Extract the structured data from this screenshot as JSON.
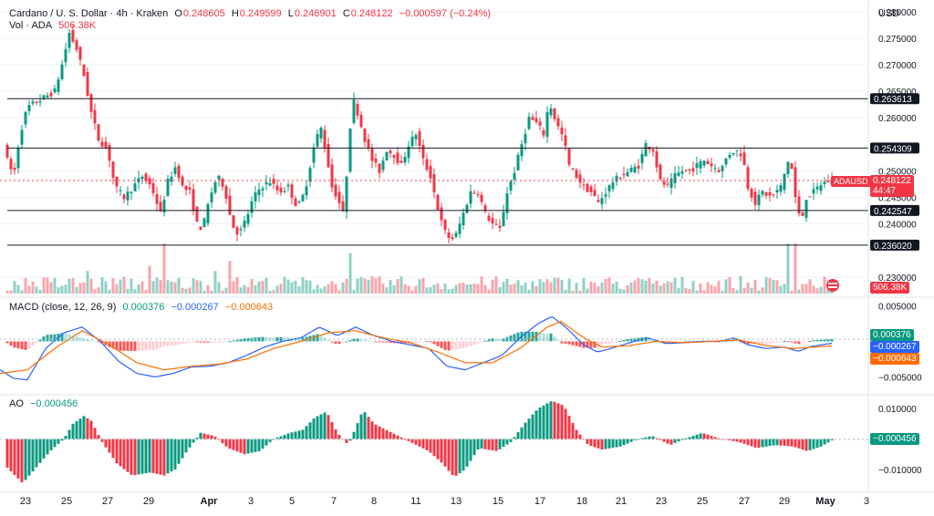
{
  "header": {
    "symbol": "Cardano / U. S. Dollar · 4h · Kraken",
    "open_label": "O",
    "open": "0.248605",
    "high_label": "H",
    "high": "0.249599",
    "low_label": "L",
    "low": "0.246901",
    "close_label": "C",
    "close": "0.248122",
    "change": "−0.000597 (−0.24%)",
    "vol_label": "Vol · ADA",
    "vol": "506.38K"
  },
  "currency": "USD",
  "macd_header": {
    "label": "MACD (close, 12, 26, 9)",
    "hist": "0.000376",
    "macd": "−0.000267",
    "signal": "−0.000643"
  },
  "ao_header": {
    "label": "AO",
    "value": "−0.000456"
  },
  "price_tag": {
    "symbol": "ADAUSD",
    "price": "0.248122",
    "countdown": "44:47"
  },
  "volume_tag": "506.38K",
  "colors": {
    "up": "#089981",
    "down": "#f23645",
    "macd": "#2962ff",
    "signal": "#ff6d00",
    "level": "#131722"
  },
  "chart_data": [
    {
      "type": "candlestick",
      "title": "Cardano / U. S. Dollar · 4h · Kraken",
      "x_ticks": [
        "23",
        "25",
        "27",
        "29",
        "Apr",
        "3",
        "5",
        "7",
        "8",
        "11",
        "13",
        "15",
        "17",
        "18",
        "21",
        "23",
        "25",
        "27",
        "29",
        "May",
        "3"
      ],
      "y_ticks": [
        "0.280000",
        "0.275000",
        "0.270000",
        "0.265000",
        "0.260000",
        "0.250000",
        "0.245000",
        "0.240000",
        "0.230000"
      ],
      "ylim": [
        0.2262,
        0.2822
      ],
      "levels": [
        "0.263613",
        "0.254309",
        "0.242547",
        "0.236020"
      ],
      "path": [
        [
          0,
          0.259
        ],
        [
          8,
          0.252
        ],
        [
          15,
          0.249
        ],
        [
          22,
          0.257
        ],
        [
          30,
          0.262
        ],
        [
          40,
          0.263
        ],
        [
          50,
          0.264
        ],
        [
          60,
          0.265
        ],
        [
          68,
          0.27
        ],
        [
          76,
          0.276
        ],
        [
          84,
          0.273
        ],
        [
          92,
          0.268
        ],
        [
          100,
          0.261
        ],
        [
          108,
          0.256
        ],
        [
          118,
          0.254
        ],
        [
          126,
          0.247
        ],
        [
          136,
          0.245
        ],
        [
          146,
          0.247
        ],
        [
          156,
          0.249
        ],
        [
          166,
          0.247
        ],
        [
          176,
          0.242
        ],
        [
          184,
          0.248
        ],
        [
          193,
          0.251
        ],
        [
          200,
          0.247
        ],
        [
          208,
          0.246
        ],
        [
          216,
          0.24
        ],
        [
          222,
          0.239
        ],
        [
          230,
          0.245
        ],
        [
          238,
          0.249
        ],
        [
          246,
          0.247
        ],
        [
          254,
          0.24
        ],
        [
          262,
          0.238
        ],
        [
          270,
          0.241
        ],
        [
          278,
          0.245
        ],
        [
          286,
          0.247
        ],
        [
          296,
          0.248
        ],
        [
          306,
          0.246
        ],
        [
          316,
          0.247
        ],
        [
          326,
          0.243
        ],
        [
          334,
          0.246
        ],
        [
          340,
          0.251
        ],
        [
          346,
          0.256
        ],
        [
          352,
          0.258
        ],
        [
          358,
          0.253
        ],
        [
          364,
          0.247
        ],
        [
          370,
          0.245
        ],
        [
          376,
          0.242
        ],
        [
          382,
          0.253
        ],
        [
          386,
          0.264
        ],
        [
          392,
          0.261
        ],
        [
          400,
          0.256
        ],
        [
          408,
          0.252
        ],
        [
          416,
          0.25
        ],
        [
          424,
          0.254
        ],
        [
          432,
          0.253
        ],
        [
          440,
          0.251
        ],
        [
          448,
          0.255
        ],
        [
          456,
          0.257
        ],
        [
          464,
          0.252
        ],
        [
          472,
          0.249
        ],
        [
          480,
          0.243
        ],
        [
          486,
          0.239
        ],
        [
          494,
          0.237
        ],
        [
          500,
          0.238
        ],
        [
          508,
          0.242
        ],
        [
          516,
          0.246
        ],
        [
          524,
          0.246
        ],
        [
          532,
          0.242
        ],
        [
          540,
          0.24
        ],
        [
          548,
          0.239
        ],
        [
          556,
          0.246
        ],
        [
          564,
          0.25
        ],
        [
          572,
          0.255
        ],
        [
          580,
          0.26
        ],
        [
          588,
          0.259
        ],
        [
          596,
          0.257
        ],
        [
          602,
          0.263
        ],
        [
          610,
          0.259
        ],
        [
          618,
          0.256
        ],
        [
          624,
          0.251
        ],
        [
          632,
          0.249
        ],
        [
          640,
          0.247
        ],
        [
          648,
          0.246
        ],
        [
          656,
          0.244
        ],
        [
          664,
          0.246
        ],
        [
          672,
          0.248
        ],
        [
          680,
          0.249
        ],
        [
          690,
          0.25
        ],
        [
          700,
          0.251
        ],
        [
          708,
          0.255
        ],
        [
          716,
          0.254
        ],
        [
          724,
          0.248
        ],
        [
          732,
          0.247
        ],
        [
          740,
          0.249
        ],
        [
          748,
          0.25
        ],
        [
          756,
          0.25
        ],
        [
          764,
          0.251
        ],
        [
          772,
          0.252
        ],
        [
          780,
          0.251
        ],
        [
          790,
          0.25
        ],
        [
          798,
          0.253
        ],
        [
          806,
          0.254
        ],
        [
          814,
          0.253
        ],
        [
          820,
          0.247
        ],
        [
          828,
          0.244
        ],
        [
          836,
          0.246
        ],
        [
          846,
          0.245
        ],
        [
          856,
          0.247
        ],
        [
          866,
          0.253
        ],
        [
          872,
          0.245
        ],
        [
          878,
          0.24
        ],
        [
          884,
          0.245
        ],
        [
          892,
          0.246
        ],
        [
          900,
          0.2475
        ],
        [
          906,
          0.248
        ],
        [
          912,
          0.2481
        ]
      ]
    },
    {
      "type": "bar",
      "title": "Vol · ADA",
      "spikes": [
        [
          96,
          "up",
          0.45
        ],
        [
          126,
          "down",
          0.75
        ],
        [
          164,
          "down",
          0.55
        ],
        [
          180,
          "down",
          1.0
        ],
        [
          218,
          "down",
          0.85
        ],
        [
          236,
          "up",
          0.45
        ],
        [
          252,
          "down",
          0.65
        ],
        [
          346,
          "up",
          1.0
        ],
        [
          384,
          "up",
          0.8
        ],
        [
          578,
          "up",
          0.45
        ],
        [
          602,
          "up",
          0.9
        ],
        [
          864,
          "up",
          1.0
        ],
        [
          872,
          "down",
          1.0
        ]
      ]
    },
    {
      "type": "line",
      "title": "MACD (close, 12, 26, 9)",
      "y_ticks": [
        "0.005000",
        "−0.005000"
      ],
      "ylim": [
        -0.0075,
        0.0062
      ],
      "macd": [
        [
          0,
          -0.004
        ],
        [
          15,
          -0.0052
        ],
        [
          30,
          -0.0054
        ],
        [
          50,
          -0.001
        ],
        [
          70,
          0.0012
        ],
        [
          90,
          0.002
        ],
        [
          110,
          0.0
        ],
        [
          130,
          -0.0028
        ],
        [
          150,
          -0.0045
        ],
        [
          170,
          -0.005
        ],
        [
          190,
          -0.0045
        ],
        [
          210,
          -0.0036
        ],
        [
          230,
          -0.0035
        ],
        [
          250,
          -0.003
        ],
        [
          270,
          -0.002
        ],
        [
          290,
          -0.0008
        ],
        [
          310,
          0.0
        ],
        [
          330,
          0.0005
        ],
        [
          350,
          0.002
        ],
        [
          370,
          0.0008
        ],
        [
          390,
          0.002
        ],
        [
          410,
          0.0008
        ],
        [
          430,
          0.0
        ],
        [
          450,
          -0.0005
        ],
        [
          470,
          -0.001
        ],
        [
          490,
          -0.0035
        ],
        [
          510,
          -0.004
        ],
        [
          530,
          -0.003
        ],
        [
          550,
          -0.002
        ],
        [
          570,
          0.0005
        ],
        [
          590,
          0.0025
        ],
        [
          605,
          0.0035
        ],
        [
          620,
          0.002
        ],
        [
          640,
          -0.0005
        ],
        [
          655,
          -0.0015
        ],
        [
          670,
          -0.001
        ],
        [
          690,
          -0.0002
        ],
        [
          710,
          0.0005
        ],
        [
          730,
          -0.0003
        ],
        [
          750,
          -0.0002
        ],
        [
          770,
          0.0
        ],
        [
          790,
          0.0
        ],
        [
          805,
          0.0005
        ],
        [
          820,
          -0.0005
        ],
        [
          840,
          -0.001
        ],
        [
          860,
          -0.0008
        ],
        [
          875,
          -0.0014
        ],
        [
          890,
          -0.0007
        ],
        [
          912,
          -0.000267
        ]
      ],
      "signal": [
        [
          0,
          -0.0045
        ],
        [
          30,
          -0.004
        ],
        [
          60,
          -0.001
        ],
        [
          90,
          0.0015
        ],
        [
          120,
          -0.0005
        ],
        [
          150,
          -0.003
        ],
        [
          180,
          -0.004
        ],
        [
          210,
          -0.0035
        ],
        [
          240,
          -0.0032
        ],
        [
          270,
          -0.0025
        ],
        [
          300,
          -0.001
        ],
        [
          330,
          0.0
        ],
        [
          360,
          0.0012
        ],
        [
          390,
          0.0015
        ],
        [
          420,
          0.0005
        ],
        [
          450,
          -0.0002
        ],
        [
          480,
          -0.0015
        ],
        [
          510,
          -0.003
        ],
        [
          540,
          -0.003
        ],
        [
          570,
          -0.001
        ],
        [
          600,
          0.002
        ],
        [
          615,
          0.0028
        ],
        [
          640,
          0.0005
        ],
        [
          660,
          -0.0008
        ],
        [
          690,
          -0.0006
        ],
        [
          720,
          0.0
        ],
        [
          750,
          -0.0002
        ],
        [
          780,
          0.0
        ],
        [
          810,
          0.0002
        ],
        [
          840,
          -0.0006
        ],
        [
          870,
          -0.001
        ],
        [
          912,
          -0.000643
        ]
      ],
      "hist_value": "0.000376"
    },
    {
      "type": "bar",
      "title": "AO",
      "y_ticks": [
        "0.010000",
        "−0.010000"
      ],
      "ylim": [
        -0.0175,
        0.0145
      ],
      "values": [
        [
          0,
          -0.007
        ],
        [
          25,
          -0.0145
        ],
        [
          35,
          -0.011
        ],
        [
          55,
          -0.004
        ],
        [
          70,
          0.0
        ],
        [
          80,
          0.005
        ],
        [
          92,
          0.0075
        ],
        [
          100,
          0.006
        ],
        [
          112,
          -0.001
        ],
        [
          128,
          -0.008
        ],
        [
          145,
          -0.012
        ],
        [
          165,
          -0.011
        ],
        [
          180,
          -0.012
        ],
        [
          192,
          -0.01
        ],
        [
          205,
          -0.004
        ],
        [
          220,
          0.002
        ],
        [
          235,
          0.001
        ],
        [
          250,
          -0.003
        ],
        [
          268,
          -0.005
        ],
        [
          285,
          -0.004
        ],
        [
          300,
          0.0
        ],
        [
          318,
          0.002
        ],
        [
          332,
          0.003
        ],
        [
          345,
          0.007
        ],
        [
          358,
          0.009
        ],
        [
          370,
          0.002
        ],
        [
          382,
          -0.002
        ],
        [
          398,
          0.0095
        ],
        [
          410,
          0.005
        ],
        [
          430,
          0.002
        ],
        [
          450,
          -0.001
        ],
        [
          470,
          -0.004
        ],
        [
          485,
          -0.008
        ],
        [
          498,
          -0.0125
        ],
        [
          510,
          -0.01
        ],
        [
          525,
          -0.003
        ],
        [
          545,
          -0.004
        ],
        [
          560,
          -0.001
        ],
        [
          575,
          0.005
        ],
        [
          590,
          0.01
        ],
        [
          605,
          0.0125
        ],
        [
          618,
          0.011
        ],
        [
          632,
          0.003
        ],
        [
          645,
          -0.002
        ],
        [
          660,
          -0.0035
        ],
        [
          680,
          -0.0025
        ],
        [
          700,
          0.0
        ],
        [
          715,
          0.001
        ],
        [
          735,
          -0.002
        ],
        [
          750,
          0.0
        ],
        [
          770,
          0.002
        ],
        [
          790,
          0.0
        ],
        [
          810,
          -0.001
        ],
        [
          830,
          -0.003
        ],
        [
          850,
          -0.002
        ],
        [
          870,
          -0.0025
        ],
        [
          885,
          -0.004
        ],
        [
          900,
          -0.0025
        ],
        [
          912,
          -0.000456
        ]
      ]
    }
  ]
}
